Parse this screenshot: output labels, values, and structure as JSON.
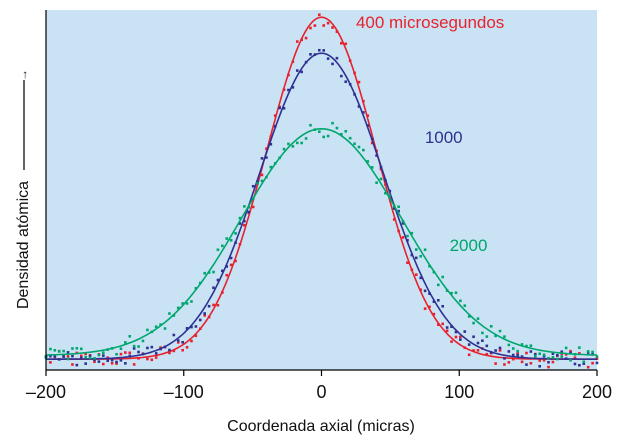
{
  "chart_data": {
    "type": "line",
    "title": "",
    "xlabel": "Coordenada axial (micras)",
    "ylabel": "Densidad atómica",
    "ylabel_arrow": "→",
    "xlim": [
      -200,
      200
    ],
    "ylim": [
      0,
      1
    ],
    "xticks": [
      -200,
      -100,
      0,
      100,
      200
    ],
    "xtick_labels": [
      "–200",
      "–100",
      "0",
      "100",
      "200"
    ],
    "grid": false,
    "legend": "inline labels",
    "background_color": "#c9e3f4",
    "series": [
      {
        "name": "400 microsegundos",
        "color": "#e8212e",
        "peak": 0.98,
        "sigma": 40,
        "baseline": 0.03,
        "label_at": [
          25,
          0.95
        ]
      },
      {
        "name": "1000",
        "color": "#2e3192",
        "peak": 0.88,
        "sigma": 45,
        "baseline": 0.03,
        "label_at": [
          75,
          0.63
        ]
      },
      {
        "name": "2000",
        "color": "#00a66e",
        "peak": 0.67,
        "sigma": 58,
        "baseline": 0.04,
        "label_at": [
          93,
          0.33
        ]
      }
    ]
  }
}
